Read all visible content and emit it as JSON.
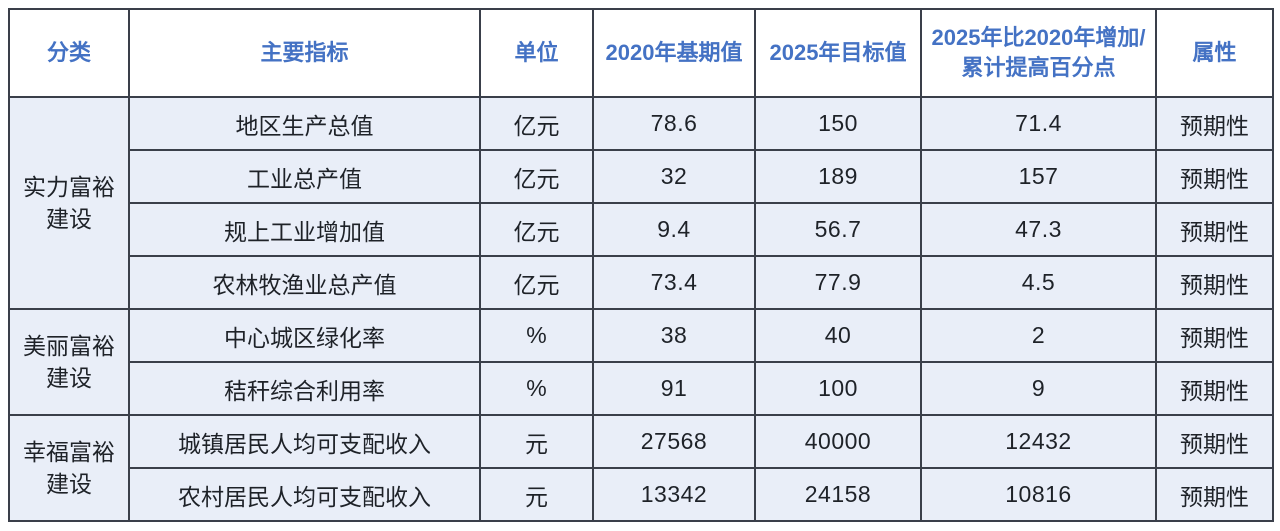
{
  "table": {
    "title_semantics": "development-indicators-table",
    "accent_color": "#4472C4",
    "body_bg": "#E9EEF8",
    "border_color": "#3A3F4A",
    "headers": {
      "category": "分类",
      "indicator": "主要指标",
      "unit": "单位",
      "base2020": "2020年基期值",
      "target2025": "2025年目标值",
      "increase": "2025年比2020年增加/累计提高百分点",
      "attribute": "属性"
    },
    "groups": [
      {
        "category": "实力富裕\n建设",
        "rows": [
          {
            "indicator": "地区生产总值",
            "unit": "亿元",
            "base": "78.6",
            "target": "150",
            "increase": "71.4",
            "attribute": "预期性"
          },
          {
            "indicator": "工业总产值",
            "unit": "亿元",
            "base": "32",
            "target": "189",
            "increase": "157",
            "attribute": "预期性"
          },
          {
            "indicator": "规上工业增加值",
            "unit": "亿元",
            "base": "9.4",
            "target": "56.7",
            "increase": "47.3",
            "attribute": "预期性"
          },
          {
            "indicator": "农林牧渔业总产值",
            "unit": "亿元",
            "base": "73.4",
            "target": "77.9",
            "increase": "4.5",
            "attribute": "预期性"
          }
        ]
      },
      {
        "category": "美丽富裕\n建设",
        "rows": [
          {
            "indicator": "中心城区绿化率",
            "unit": "%",
            "base": "38",
            "target": "40",
            "increase": "2",
            "attribute": "预期性"
          },
          {
            "indicator": "秸秆综合利用率",
            "unit": "%",
            "base": "91",
            "target": "100",
            "increase": "9",
            "attribute": "预期性"
          }
        ]
      },
      {
        "category": "幸福富裕\n建设",
        "rows": [
          {
            "indicator": "城镇居民人均可支配收入",
            "unit": "元",
            "base": "27568",
            "target": "40000",
            "increase": "12432",
            "attribute": "预期性"
          },
          {
            "indicator": "农村居民人均可支配收入",
            "unit": "元",
            "base": "13342",
            "target": "24158",
            "increase": "10816",
            "attribute": "预期性"
          }
        ]
      }
    ]
  }
}
